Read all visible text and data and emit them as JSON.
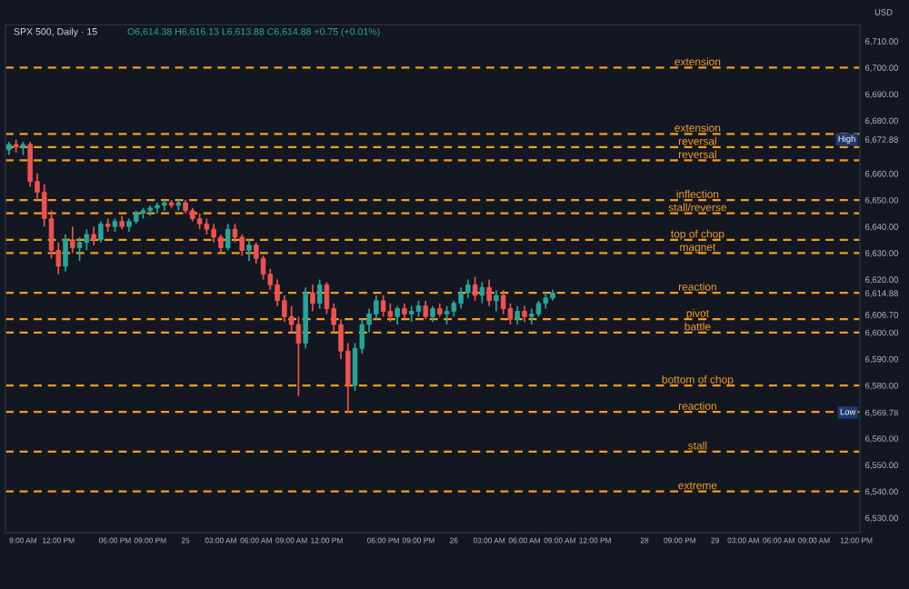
{
  "chart_data": {
    "type": "candlestick",
    "title": "SPX 500, Daily · 15",
    "subtitle": "O6,614.38 H6,616.13 L6,613.88 C6,614.88 +0.75 (+0.01%)",
    "categories": [
      null,
      null,
      "9:00 AM",
      null,
      null,
      null,
      null,
      "12:00 PM",
      null,
      null,
      null,
      null,
      null,
      null,
      null,
      "06:00 PM",
      null,
      null,
      null,
      null,
      "09:00 PM",
      null,
      null,
      null,
      null,
      "25",
      null,
      null,
      null,
      null,
      "03:00 AM",
      null,
      null,
      null,
      null,
      "06:00 AM",
      null,
      null,
      null,
      null,
      "09:00 AM",
      null,
      null,
      null,
      null,
      "12:00 PM",
      null,
      null,
      null,
      null,
      null,
      null,
      null,
      "06:00 PM",
      null,
      null,
      null,
      null,
      "09:00 PM",
      null,
      null,
      null,
      null,
      "26",
      null,
      null,
      null,
      null,
      "03:00 AM",
      null,
      null,
      null,
      null,
      "06:00 AM",
      null,
      null,
      null,
      null,
      "09:00 AM",
      null,
      null,
      null,
      null,
      "12:00 PM",
      null,
      null,
      null,
      null,
      null,
      null,
      "28",
      null,
      null,
      null,
      null,
      "09:00 PM",
      null,
      null,
      null,
      null,
      "29",
      null,
      null,
      null,
      "03:00 AM",
      null,
      null,
      null,
      null,
      "06:00 AM",
      null,
      null,
      null,
      null,
      "09:00 AM",
      null,
      null,
      null,
      null,
      null,
      "12:00 PM"
    ],
    "ohlc": [
      [
        6669,
        6672,
        6667,
        6671
      ],
      [
        6671,
        6672.88,
        6668,
        6670
      ],
      [
        6670,
        6672,
        6667,
        6671
      ],
      [
        6671,
        6672,
        6655,
        6657
      ],
      [
        6657,
        6660,
        6650,
        6653
      ],
      [
        6653,
        6656,
        6640,
        6643
      ],
      [
        6643,
        6646,
        6628,
        6631
      ],
      [
        6631,
        6634,
        6622,
        6625
      ],
      [
        6625,
        6637,
        6623,
        6635
      ],
      [
        6635,
        6640,
        6630,
        6632
      ],
      [
        6632,
        6636,
        6627,
        6634
      ],
      [
        6634,
        6639,
        6631,
        6637
      ],
      [
        6637,
        6640,
        6633,
        6635
      ],
      [
        6635,
        6642,
        6634,
        6641
      ],
      [
        6641,
        6643,
        6638,
        6640
      ],
      [
        6640,
        6643,
        6638,
        6642
      ],
      [
        6642,
        6644,
        6639,
        6640
      ],
      [
        6640,
        6643,
        6638,
        6642
      ],
      [
        6642,
        6646,
        6641,
        6645
      ],
      [
        6645,
        6647,
        6643,
        6646
      ],
      [
        6646,
        6648,
        6644,
        6647
      ],
      [
        6647,
        6649,
        6645,
        6648
      ],
      [
        6648,
        6650,
        6646,
        6649
      ],
      [
        6649,
        6650,
        6647,
        6648
      ],
      [
        6648,
        6650,
        6646,
        6649
      ],
      [
        6649,
        6650,
        6645,
        6646
      ],
      [
        6646,
        6647,
        6642,
        6643
      ],
      [
        6643,
        6645,
        6639,
        6641
      ],
      [
        6641,
        6643,
        6637,
        6639
      ],
      [
        6639,
        6641,
        6634,
        6636
      ],
      [
        6636,
        6637,
        6630,
        6632
      ],
      [
        6632,
        6641,
        6631,
        6639
      ],
      [
        6639,
        6641,
        6634,
        6636
      ],
      [
        6636,
        6637,
        6629,
        6631
      ],
      [
        6631,
        6635,
        6627,
        6633
      ],
      [
        6633,
        6634,
        6626,
        6628
      ],
      [
        6628,
        6629,
        6620,
        6622
      ],
      [
        6622,
        6624,
        6616,
        6618
      ],
      [
        6618,
        6620,
        6610,
        6612
      ],
      [
        6612,
        6614,
        6604,
        6606
      ],
      [
        6606,
        6610,
        6600,
        6603
      ],
      [
        6603,
        6606,
        6576,
        6596
      ],
      [
        6596,
        6617,
        6594,
        6615
      ],
      [
        6615,
        6618,
        6608,
        6611
      ],
      [
        6611,
        6620,
        6609,
        6618
      ],
      [
        6618,
        6619,
        6607,
        6609
      ],
      [
        6609,
        6611,
        6600,
        6603
      ],
      [
        6603,
        6605,
        6590,
        6593
      ],
      [
        6593,
        6596,
        6569.78,
        6580
      ],
      [
        6580,
        6596,
        6578,
        6594
      ],
      [
        6594,
        6605,
        6592,
        6603
      ],
      [
        6603,
        6609,
        6600,
        6607
      ],
      [
        6607,
        6614,
        6605,
        6612
      ],
      [
        6612,
        6614,
        6606,
        6608
      ],
      [
        6608,
        6611,
        6604,
        6606
      ],
      [
        6606,
        6610,
        6603,
        6609
      ],
      [
        6609,
        6611,
        6605,
        6607
      ],
      [
        6607,
        6610,
        6604,
        6608
      ],
      [
        6608,
        6612,
        6606,
        6610
      ],
      [
        6610,
        6612,
        6605,
        6606
      ],
      [
        6606,
        6610,
        6604,
        6609
      ],
      [
        6609,
        6611,
        6606,
        6607
      ],
      [
        6607,
        6610,
        6603,
        6608
      ],
      [
        6608,
        6612,
        6606,
        6611
      ],
      [
        6611,
        6617,
        6609,
        6615
      ],
      [
        6615,
        6620,
        6613,
        6618
      ],
      [
        6618,
        6621,
        6612,
        6614
      ],
      [
        6614,
        6619,
        6611,
        6617
      ],
      [
        6617,
        6620,
        6610,
        6612
      ],
      [
        6612,
        6616,
        6608,
        6614
      ],
      [
        6614,
        6616,
        6607,
        6609
      ],
      [
        6609,
        6611,
        6603,
        6605
      ],
      [
        6605,
        6610,
        6603,
        6608
      ],
      [
        6608,
        6610,
        6604,
        6606
      ],
      [
        6606,
        6609,
        6603,
        6607
      ],
      [
        6607,
        6612,
        6606,
        6611
      ],
      [
        6611,
        6615,
        6609,
        6613
      ],
      [
        6613,
        6616.13,
        6612,
        6614.88
      ],
      null,
      null,
      null,
      null,
      null,
      null,
      null,
      null,
      null,
      null,
      null,
      null,
      null,
      null,
      null,
      null,
      null,
      null,
      null,
      null,
      null,
      null,
      null,
      null,
      null,
      null,
      null,
      null,
      null,
      null,
      null,
      null,
      null,
      null,
      null,
      null,
      null,
      null,
      null,
      null,
      null,
      null,
      null
    ],
    "colors": [
      "#26a69a",
      "#ef5350",
      "#26a69a",
      "#ef5350",
      "#ef5350",
      "#ef5350",
      "#ef5350",
      "#ef5350",
      "#26a69a",
      "#ef5350",
      "#26a69a",
      "#26a69a",
      "#ef5350",
      "#26a69a",
      "#ef5350",
      "#26a69a",
      "#ef5350",
      "#26a69a",
      "#26a69a",
      "#26a69a",
      "#26a69a",
      "#26a69a",
      "#26a69a",
      "#ef5350",
      "#26a69a",
      "#ef5350",
      "#ef5350",
      "#ef5350",
      "#ef5350",
      "#ef5350",
      "#ef5350",
      "#26a69a",
      "#ef5350",
      "#ef5350",
      "#26a69a",
      "#ef5350",
      "#ef5350",
      "#ef5350",
      "#ef5350",
      "#ef5350",
      "#ef5350",
      "#ef5350",
      "#26a69a",
      "#ef5350",
      "#26a69a",
      "#ef5350",
      "#ef5350",
      "#ef5350",
      "#ef5350",
      "#26a69a",
      "#26a69a",
      "#26a69a",
      "#26a69a",
      "#ef5350",
      "#ef5350",
      "#26a69a",
      "#ef5350",
      "#26a69a",
      "#26a69a",
      "#ef5350",
      "#26a69a",
      "#ef5350",
      "#26a69a",
      "#26a69a",
      "#26a69a",
      "#26a69a",
      "#ef5350",
      "#26a69a",
      "#ef5350",
      "#26a69a",
      "#ef5350",
      "#ef5350",
      "#26a69a",
      "#ef5350",
      "#26a69a",
      "#26a69a",
      "#26a69a",
      "#26a69a",
      null,
      null,
      null,
      null,
      null,
      null,
      null,
      null,
      null,
      null,
      null,
      null,
      null,
      null,
      null,
      null,
      null,
      null,
      null,
      null,
      null,
      null,
      null,
      null,
      null,
      null,
      null,
      null,
      null,
      null,
      null,
      null,
      null,
      null,
      null,
      null,
      null,
      null,
      null,
      null,
      null,
      null,
      null
    ],
    "ylim": [
      6524.5,
      6716.2
    ],
    "yticks": [
      {
        "value": 6530,
        "label": "6,530.00"
      },
      {
        "value": 6540,
        "label": "6,540.00"
      },
      {
        "value": 6550,
        "label": "6,550.00"
      },
      {
        "value": 6560,
        "label": "6,560.00"
      },
      {
        "value": 6569.78,
        "label": "6,569.78"
      },
      {
        "value": 6580,
        "label": "6,580.00"
      },
      {
        "value": 6590,
        "label": "6,590.00"
      },
      {
        "value": 6600,
        "label": "6,600.00"
      },
      {
        "value": 6606.7,
        "label": "6,606.70"
      },
      {
        "value": 6614.88,
        "label": "6,614.88"
      },
      {
        "value": 6620,
        "label": "6,620.00"
      },
      {
        "value": 6630,
        "label": "6,630.00"
      },
      {
        "value": 6640,
        "label": "6,640.00"
      },
      {
        "value": 6650,
        "label": "6,650.00"
      },
      {
        "value": 6660,
        "label": "6,660.00"
      },
      {
        "value": 6672.88,
        "label": "6,672.88"
      },
      {
        "value": 6680,
        "label": "6,680.00"
      },
      {
        "value": 6690,
        "label": "6,690.00"
      },
      {
        "value": 6700,
        "label": "6,700.00"
      },
      {
        "value": 6710,
        "label": "6,710.00"
      }
    ],
    "ref_lines": [
      {
        "axis": "y",
        "value": 6700,
        "label": "extension",
        "color": "#f59d1f",
        "line_style": "dashed"
      },
      {
        "axis": "y",
        "value": 6675,
        "label": "extension",
        "color": "#f59d1f",
        "line_style": "dashed"
      },
      {
        "axis": "y",
        "value": 6670,
        "label": "reversal",
        "color": "#f59d1f",
        "line_style": "dashed"
      },
      {
        "axis": "y",
        "value": 6665,
        "label": "reversal",
        "color": "#f59d1f",
        "line_style": "dashed"
      },
      {
        "axis": "y",
        "value": 6650,
        "label": "inflection",
        "color": "#f59d1f",
        "line_style": "dashed"
      },
      {
        "axis": "y",
        "value": 6645,
        "label": "stall/reverse",
        "color": "#f59d1f",
        "line_style": "dashed"
      },
      {
        "axis": "y",
        "value": 6635,
        "label": "top of chop",
        "color": "#f59d1f",
        "line_style": "dashed"
      },
      {
        "axis": "y",
        "value": 6630,
        "label": "magnet",
        "color": "#f59d1f",
        "line_style": "dashed"
      },
      {
        "axis": "y",
        "value": 6615,
        "label": "reaction",
        "color": "#f59d1f",
        "line_style": "dashed"
      },
      {
        "axis": "y",
        "value": 6605,
        "label": "pivot",
        "color": "#f59d1f",
        "line_style": "dashed"
      },
      {
        "axis": "y",
        "value": 6600,
        "label": "battle",
        "color": "#f59d1f",
        "line_style": "dashed"
      },
      {
        "axis": "y",
        "value": 6580,
        "label": "bottom of chop",
        "color": "#f59d1f",
        "line_style": "dashed"
      },
      {
        "axis": "y",
        "value": 6570,
        "label": "reaction",
        "color": "#f59d1f",
        "line_style": "dashed"
      },
      {
        "axis": "y",
        "value": 6555,
        "label": "stall",
        "color": "#f59d1f",
        "line_style": "dashed"
      },
      {
        "axis": "y",
        "value": 6540,
        "label": "extreme",
        "color": "#f59d1f",
        "line_style": "dashed"
      }
    ],
    "annotations": [
      "USD",
      {
        "text": "High",
        "y": 6672.88
      },
      {
        "text": "Low",
        "y": 6569.78
      }
    ]
  }
}
